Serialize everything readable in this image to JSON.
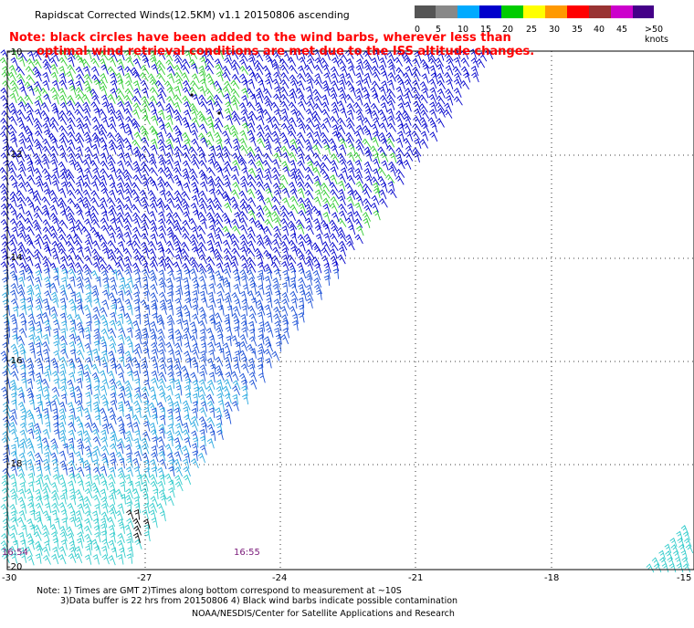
{
  "header": {
    "title": "Rapidscat Corrected Winds(12.5KM) v1.1 20150806 ascending",
    "note_line1": "Note: black circles have been added to the wind barbs, wherever less than",
    "note_line2": "optimal wind retrieval conditions are met due to the ISS altitude changes."
  },
  "legend": {
    "labels": [
      "0",
      "5",
      "10",
      "15",
      "20",
      "25",
      "30",
      "35",
      "40",
      "45",
      ">50 knots"
    ],
    "colors": [
      "#555555",
      "#888888",
      "#00aaff",
      "#0000cc",
      "#00cc00",
      "#ffff00",
      "#ff9900",
      "#ff0000",
      "#993333",
      "#cc00cc",
      "#440088"
    ]
  },
  "axes": {
    "lat_labels": [
      "-10",
      "-12",
      "-14",
      "-16",
      "-18",
      "-20"
    ],
    "lon_labels": [
      "-30",
      "-27",
      "-24",
      "-21",
      "-18",
      "-15"
    ]
  },
  "times": {
    "left": "16:54",
    "center": "16:55"
  },
  "footer": {
    "line1": "Note: 1) Times are GMT 2)Times along bottom correspond to measurement at ~10S",
    "line2": "3)Data buffer is 22 hrs from 20150806 4) Black wind barbs indicate possible contamination",
    "line3": "NOAA/NESDIS/Center for Satellite Applications and Research"
  },
  "colors": {
    "barb_green": "#33cc33",
    "barb_blue": "#0000cc",
    "barb_mid_blue": "#1a4fd6",
    "barb_light_blue": "#2aa8e0",
    "barb_cyan": "#33cccc",
    "barb_black": "#000000",
    "grid": "#000000"
  }
}
